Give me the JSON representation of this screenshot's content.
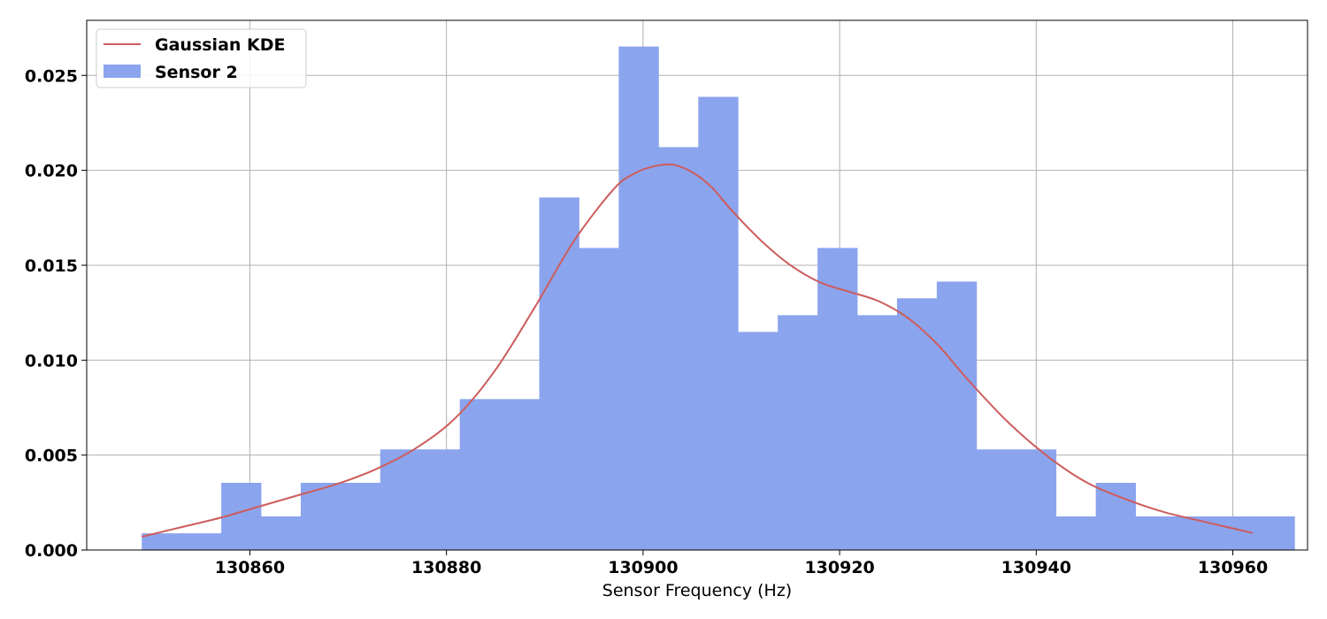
{
  "chart_data": {
    "type": "bar",
    "title": "",
    "xlabel": "Sensor Frequency (Hz)",
    "ylabel": "",
    "xlim": [
      130843.4,
      130967.6
    ],
    "ylim": [
      0,
      0.0279
    ],
    "grid": true,
    "legend_position": "top-left",
    "x_ticks": [
      130860,
      130880,
      130900,
      130920,
      130940,
      130960
    ],
    "y_ticks": [
      0.0,
      0.005,
      0.01,
      0.015,
      0.02,
      0.025
    ],
    "y_tick_labels": [
      "0.000",
      "0.005",
      "0.010",
      "0.015",
      "0.020",
      "0.025"
    ],
    "histogram": {
      "name": "Sensor 2",
      "color": "#8ba4ee",
      "bin_start": 130849.0,
      "bin_width": 4.044,
      "values": [
        0.00088,
        0.00088,
        0.00354,
        0.00177,
        0.00354,
        0.00354,
        0.0053,
        0.0053,
        0.00795,
        0.00795,
        0.01857,
        0.01591,
        0.02652,
        0.02122,
        0.02387,
        0.01149,
        0.01237,
        0.01591,
        0.01237,
        0.01326,
        0.01414,
        0.0053,
        0.0053,
        0.00177,
        0.00354,
        0.00177,
        0.00177,
        0.00177,
        0.00177
      ]
    },
    "kde": {
      "name": "Gaussian KDE",
      "color": "#cd5c5c",
      "x": [
        130849,
        130853,
        130857,
        130861,
        130865,
        130869,
        130873,
        130877,
        130881,
        130885,
        130889,
        130893,
        130897,
        130899,
        130901,
        130903,
        130905,
        130907,
        130909,
        130912,
        130915,
        130918,
        130921,
        130924,
        130927,
        130930,
        130933,
        130937,
        130941,
        130945,
        130949,
        130953,
        130957,
        130962
      ],
      "y": [
        0.0007,
        0.0012,
        0.0017,
        0.0023,
        0.0029,
        0.0035,
        0.0043,
        0.0054,
        0.007,
        0.0095,
        0.0128,
        0.0163,
        0.019,
        0.0198,
        0.0202,
        0.0203,
        0.0199,
        0.0191,
        0.0179,
        0.0163,
        0.015,
        0.0141,
        0.0136,
        0.0131,
        0.0122,
        0.0108,
        0.009,
        0.0068,
        0.005,
        0.0036,
        0.0027,
        0.002,
        0.0015,
        0.0009
      ]
    }
  }
}
